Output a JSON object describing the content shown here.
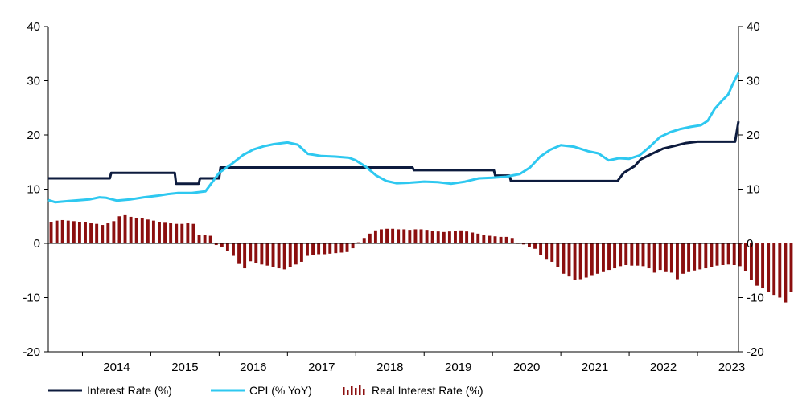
{
  "chart_data": {
    "type": "line",
    "title": "",
    "xlabel": "",
    "ylabel": "",
    "ylim": [
      -20,
      40
    ],
    "y2lim": [
      -20,
      40
    ],
    "yticks": [
      -20,
      -10,
      0,
      10,
      20,
      30,
      40
    ],
    "y_tick_labels": [
      "-20",
      "-10",
      "0",
      "10",
      "20",
      "30",
      "40"
    ],
    "x_range": [
      2013.5,
      2023.6
    ],
    "x_tick_labels": [
      "2014",
      "2015",
      "2016",
      "2017",
      "2018",
      "2019",
      "2020",
      "2021",
      "2022",
      "2023"
    ],
    "grid": false,
    "legend_position": "bottom",
    "series": [
      {
        "name": "Interest Rate (%)",
        "type": "line",
        "color": "#0d1b3e",
        "points": [
          [
            2013.5,
            12
          ],
          [
            2014.4,
            12
          ],
          [
            2014.42,
            13
          ],
          [
            2015.35,
            13
          ],
          [
            2015.37,
            11
          ],
          [
            2015.7,
            11
          ],
          [
            2015.72,
            12
          ],
          [
            2016.0,
            12
          ],
          [
            2016.02,
            14
          ],
          [
            2018.83,
            14
          ],
          [
            2018.85,
            13.5
          ],
          [
            2020.02,
            13.5
          ],
          [
            2020.04,
            12.5
          ],
          [
            2020.25,
            12.5
          ],
          [
            2020.27,
            11.5
          ],
          [
            2021.83,
            11.5
          ],
          [
            2021.92,
            13
          ],
          [
            2022.08,
            14.25
          ],
          [
            2022.17,
            15.5
          ],
          [
            2022.33,
            16.5
          ],
          [
            2022.5,
            17.5
          ],
          [
            2022.67,
            18
          ],
          [
            2022.83,
            18.5
          ],
          [
            2023.0,
            18.75
          ],
          [
            2023.55,
            18.75
          ],
          [
            2023.6,
            22.5
          ]
        ]
      },
      {
        "name": "CPI (% YoY)",
        "type": "line",
        "color": "#2ec8f0",
        "points": [
          [
            2013.5,
            8
          ],
          [
            2013.6,
            7.6
          ],
          [
            2013.8,
            7.8
          ],
          [
            2014.1,
            8.1
          ],
          [
            2014.25,
            8.5
          ],
          [
            2014.35,
            8.4
          ],
          [
            2014.5,
            7.9
          ],
          [
            2014.7,
            8.1
          ],
          [
            2014.9,
            8.5
          ],
          [
            2015.1,
            8.8
          ],
          [
            2015.25,
            9.1
          ],
          [
            2015.4,
            9.3
          ],
          [
            2015.6,
            9.3
          ],
          [
            2015.8,
            9.6
          ],
          [
            2016.0,
            13
          ],
          [
            2016.2,
            14.8
          ],
          [
            2016.35,
            16.3
          ],
          [
            2016.5,
            17.3
          ],
          [
            2016.65,
            17.9
          ],
          [
            2016.8,
            18.3
          ],
          [
            2017.0,
            18.6
          ],
          [
            2017.15,
            18.2
          ],
          [
            2017.3,
            16.5
          ],
          [
            2017.5,
            16.1
          ],
          [
            2017.7,
            16
          ],
          [
            2017.9,
            15.8
          ],
          [
            2018.0,
            15.3
          ],
          [
            2018.15,
            14.1
          ],
          [
            2018.3,
            12.5
          ],
          [
            2018.45,
            11.5
          ],
          [
            2018.6,
            11.1
          ],
          [
            2018.8,
            11.2
          ],
          [
            2019.0,
            11.4
          ],
          [
            2019.2,
            11.3
          ],
          [
            2019.4,
            11.0
          ],
          [
            2019.6,
            11.4
          ],
          [
            2019.8,
            12.0
          ],
          [
            2020.0,
            12.1
          ],
          [
            2020.2,
            12.3
          ],
          [
            2020.4,
            12.8
          ],
          [
            2020.55,
            14.0
          ],
          [
            2020.7,
            16.0
          ],
          [
            2020.85,
            17.3
          ],
          [
            2021.0,
            18.1
          ],
          [
            2021.2,
            17.8
          ],
          [
            2021.4,
            17.0
          ],
          [
            2021.55,
            16.6
          ],
          [
            2021.7,
            15.3
          ],
          [
            2021.85,
            15.7
          ],
          [
            2022.0,
            15.6
          ],
          [
            2022.15,
            16.2
          ],
          [
            2022.3,
            17.8
          ],
          [
            2022.45,
            19.6
          ],
          [
            2022.6,
            20.5
          ],
          [
            2022.75,
            21.1
          ],
          [
            2022.9,
            21.5
          ],
          [
            2023.05,
            21.8
          ],
          [
            2023.15,
            22.6
          ],
          [
            2023.25,
            24.8
          ],
          [
            2023.35,
            26.2
          ],
          [
            2023.45,
            27.5
          ],
          [
            2023.52,
            29.5
          ],
          [
            2023.6,
            31.5
          ]
        ]
      },
      {
        "name": "Real Interest Rate (%)",
        "type": "bar",
        "color": "#8b0f0f",
        "x_start": 2013.5,
        "x_step": 0.0833,
        "values": [
          4.0,
          4.2,
          4.3,
          4.2,
          4.1,
          4.0,
          3.9,
          3.7,
          3.6,
          3.4,
          3.7,
          4.1,
          5.0,
          5.2,
          4.9,
          4.7,
          4.6,
          4.4,
          4.2,
          4.0,
          3.8,
          3.7,
          3.6,
          3.6,
          3.7,
          3.6,
          1.6,
          1.5,
          1.4,
          -0.3,
          -0.6,
          -1.4,
          -2.3,
          -3.8,
          -4.6,
          -3.3,
          -3.6,
          -3.9,
          -4.1,
          -4.4,
          -4.6,
          -4.8,
          -4.3,
          -3.9,
          -3.4,
          -2.3,
          -2.1,
          -2.0,
          -2.0,
          -1.9,
          -1.8,
          -1.7,
          -1.6,
          -0.9,
          0.2,
          1.0,
          1.8,
          2.4,
          2.6,
          2.7,
          2.7,
          2.6,
          2.6,
          2.5,
          2.6,
          2.6,
          2.5,
          2.3,
          2.2,
          2.1,
          2.2,
          2.3,
          2.4,
          2.2,
          2.0,
          1.8,
          1.6,
          1.4,
          1.3,
          1.2,
          1.2,
          1.0,
          -0.1,
          -0.2,
          -0.6,
          -1.0,
          -2.2,
          -3.0,
          -3.4,
          -4.3,
          -5.6,
          -6.1,
          -6.7,
          -6.6,
          -6.3,
          -6.0,
          -5.6,
          -5.3,
          -4.9,
          -4.6,
          -4.2,
          -4.0,
          -4.1,
          -4.1,
          -4.2,
          -4.6,
          -5.4,
          -4.9,
          -5.3,
          -5.4,
          -6.6,
          -5.6,
          -5.3,
          -5.0,
          -4.8,
          -4.6,
          -4.3,
          -4.1,
          -4.0,
          -3.9,
          -4.0,
          -4.2,
          -5.1,
          -6.8,
          -7.8,
          -8.3,
          -8.9,
          -9.5,
          -10.0,
          -10.9,
          -9.0
        ]
      }
    ]
  }
}
